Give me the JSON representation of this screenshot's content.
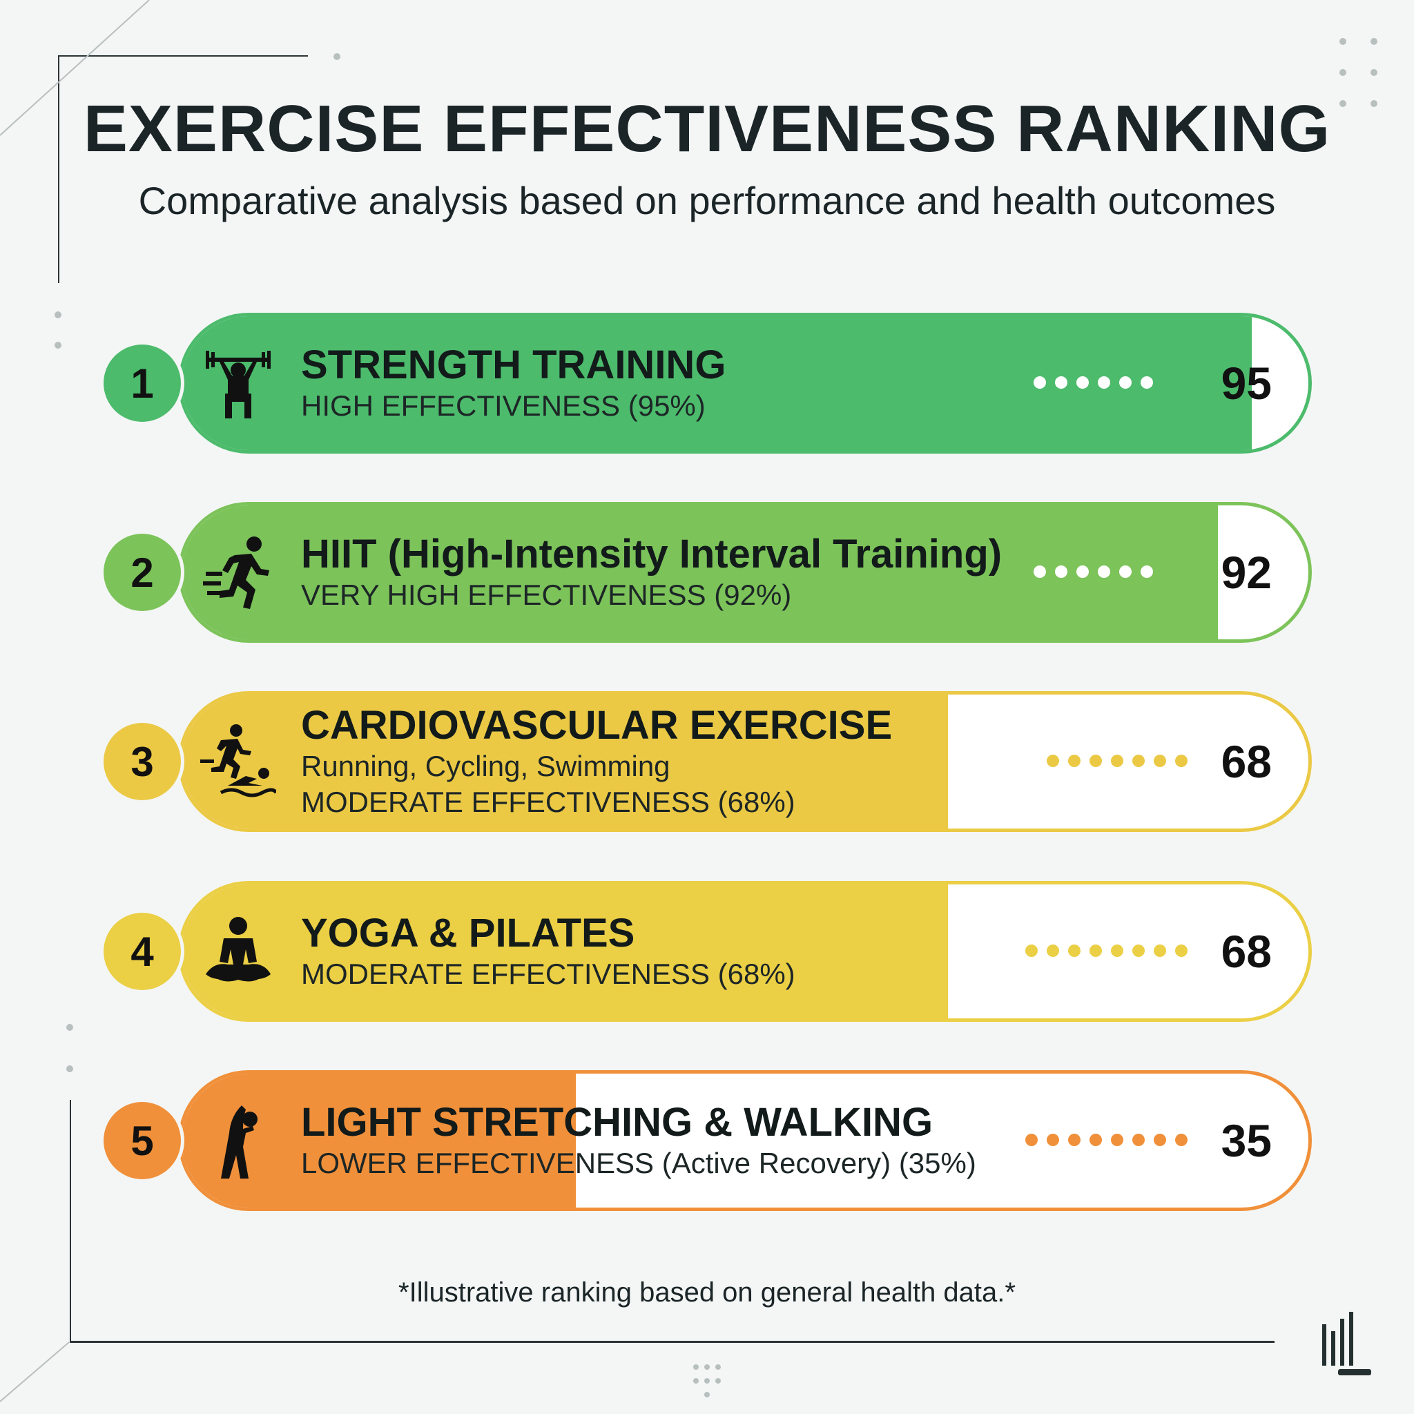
{
  "header": {
    "title": "EXERCISE EFFECTIVENESS RANKING",
    "subtitle": "Comparative analysis based on performance and health outcomes"
  },
  "chart_data": {
    "type": "bar",
    "orientation": "horizontal",
    "title": "EXERCISE EFFECTIVENESS RANKING",
    "subtitle": "Comparative analysis based on performance and health outcomes",
    "xlim": [
      0,
      100
    ],
    "categories": [
      "STRENGTH TRAINING",
      "HIIT (High-Intensity Interval Training)",
      "CARDIOVASCULAR EXERCISE",
      "YOGA & PILATES",
      "LIGHT STRETCHING & WALKING"
    ],
    "values": [
      95,
      92,
      68,
      68,
      35
    ],
    "items": [
      {
        "rank": "1",
        "name": "STRENGTH TRAINING",
        "lines": [
          "HIGH EFFECTIVENESS (95%)"
        ],
        "value": 95,
        "score": "95",
        "color": "#4cbb6c",
        "icon": "weightlifter-icon",
        "dots": 6,
        "dot_color": "#ffffff"
      },
      {
        "rank": "2",
        "name": "HIIT (High-Intensity Interval Training)",
        "lines": [
          "VERY HIGH EFFECTIVENESS (92%)"
        ],
        "value": 92,
        "score": "92",
        "color": "#7cc35a",
        "icon": "sprinter-icon",
        "dots": 6,
        "dot_color": "#ffffff"
      },
      {
        "rank": "3",
        "name": "CARDIOVASCULAR EXERCISE",
        "lines": [
          "Running, Cycling, Swimming",
          "MODERATE EFFECTIVENESS (68%)"
        ],
        "value": 68,
        "score": "68",
        "color": "#ebc945",
        "icon": "runner-swimmer-icon",
        "dots": 7,
        "dot_color": "#ebc945"
      },
      {
        "rank": "4",
        "name": "YOGA & PILATES",
        "lines": [
          "MODERATE EFFECTIVENESS (68%)"
        ],
        "value": 68,
        "score": "68",
        "color": "#ebcf45",
        "icon": "meditation-icon",
        "dots": 8,
        "dot_color": "#ebcf45"
      },
      {
        "rank": "5",
        "name": "LIGHT STRETCHING & WALKING",
        "lines": [
          "LOWER EFFECTIVENESS (Active Recovery) (35%)"
        ],
        "value": 35,
        "score": "35",
        "color": "#f0903a",
        "icon": "stretching-icon",
        "dots": 8,
        "dot_color": "#f0903a"
      }
    ]
  },
  "footer": {
    "note": "*Illustrative ranking based on general health data.*"
  }
}
